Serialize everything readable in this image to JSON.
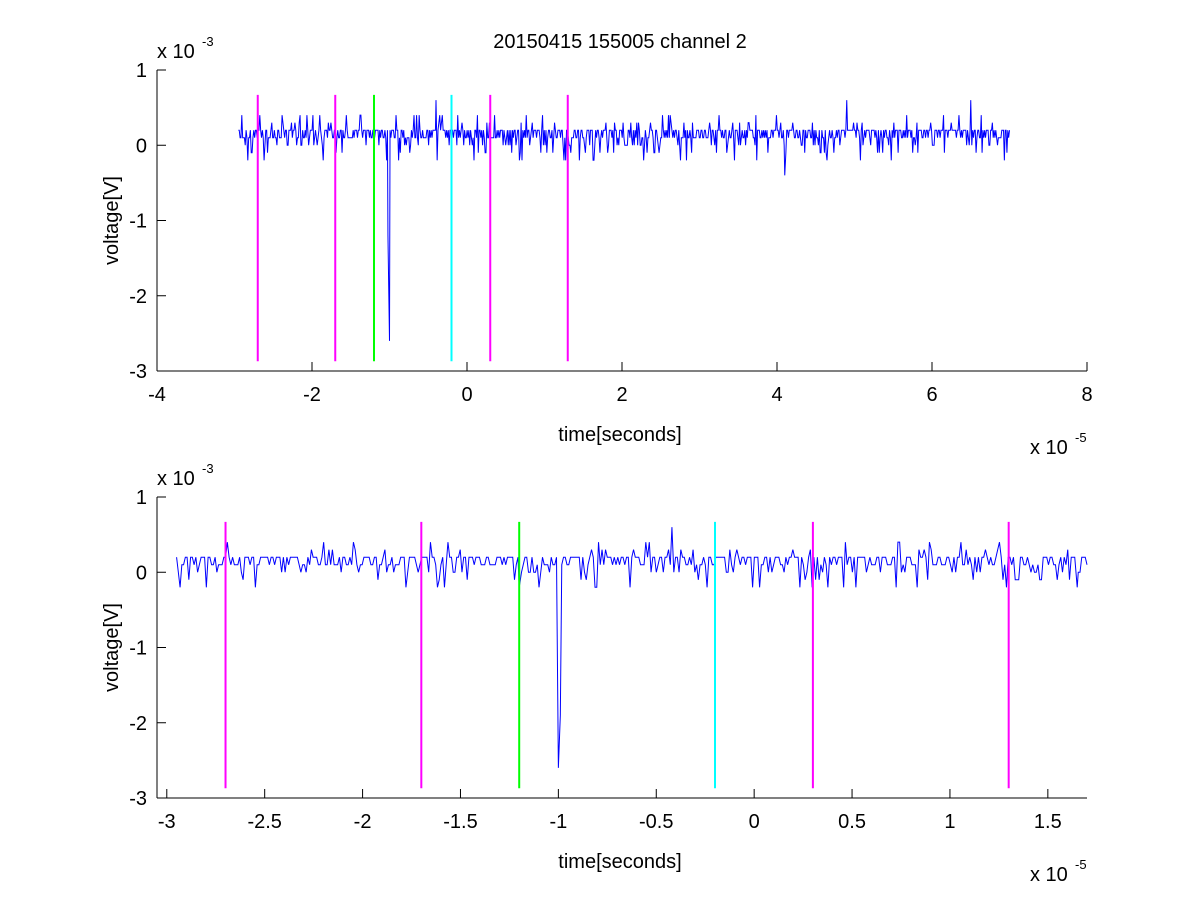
{
  "figure": {
    "title": "20150415 155005 channel 2",
    "background": "#ffffff"
  },
  "chart_data": [
    {
      "type": "line",
      "title": "20150415 155005 channel 2",
      "xlabel": "time[seconds]",
      "ylabel": "voltage[V]",
      "xlim": [
        -4e-05,
        8e-05
      ],
      "ylim": [
        -0.003,
        0.001
      ],
      "x_exponent_label": "x 10",
      "x_exponent": "-5",
      "y_exponent_label": "x 10",
      "y_exponent": "-3",
      "x_ticks": [
        -4e-05,
        -2e-05,
        0,
        2e-05,
        4e-05,
        6e-05,
        8e-05
      ],
      "x_tick_labels": [
        "-4",
        "-2",
        "0",
        "2",
        "4",
        "6",
        "8"
      ],
      "y_ticks": [
        0.001,
        0,
        -0.001,
        -0.002,
        -0.003
      ],
      "y_tick_labels": [
        "1",
        "0",
        "-1",
        "-2",
        "-3"
      ],
      "grid": false,
      "series": [
        {
          "color": "#0000ff",
          "x_range": [
            -2.95e-05,
            7e-05
          ],
          "baseline": 0.00012,
          "noise_amplitude": 0.0002,
          "spikes": [
            {
              "x": -1e-05,
              "y": -0.0026
            },
            {
              "x": -1.02e-05,
              "y": -0.0012
            },
            {
              "x": -4e-06,
              "y": 0.0006
            },
            {
              "x": 4.1e-05,
              "y": -0.0004
            },
            {
              "x": 4.9e-05,
              "y": 0.0006
            },
            {
              "x": 6.5e-05,
              "y": 0.0006
            }
          ]
        }
      ],
      "vertical_markers": [
        {
          "x": -2.7e-05,
          "color": "#ff00ff"
        },
        {
          "x": -1.7e-05,
          "color": "#ff00ff"
        },
        {
          "x": -1.2e-05,
          "color": "#00ff00"
        },
        {
          "x": -2e-06,
          "color": "#00ffff"
        },
        {
          "x": 3e-06,
          "color": "#ff00ff"
        },
        {
          "x": 1.3e-05,
          "color": "#ff00ff"
        }
      ],
      "marker_y_range": [
        -0.00287,
        0.00067
      ]
    },
    {
      "type": "line",
      "title": "",
      "xlabel": "time[seconds]",
      "ylabel": "voltage[V]",
      "xlim": [
        -3.05e-05,
        1.7e-05
      ],
      "ylim": [
        -0.003,
        0.001
      ],
      "x_exponent_label": "x 10",
      "x_exponent": "-5",
      "y_exponent_label": "x 10",
      "y_exponent": "-3",
      "x_ticks": [
        -3e-05,
        -2.5e-05,
        -2e-05,
        -1.5e-05,
        -1e-05,
        -5e-06,
        0,
        5e-06,
        1e-05,
        1.5e-05
      ],
      "x_tick_labels": [
        "-3",
        "-2.5",
        "-2",
        "-1.5",
        "-1",
        "-0.5",
        "0",
        "0.5",
        "1",
        "1.5"
      ],
      "y_ticks": [
        0.001,
        0,
        -0.001,
        -0.002,
        -0.003
      ],
      "y_tick_labels": [
        "1",
        "0",
        "-1",
        "-2",
        "-3"
      ],
      "grid": false,
      "series": [
        {
          "color": "#0000ff",
          "x_range": [
            -2.95e-05,
            1.7e-05
          ],
          "baseline": 0.00012,
          "noise_amplitude": 0.0002,
          "spikes": [
            {
              "x": -1e-05,
              "y": -0.0026
            },
            {
              "x": -9.9e-06,
              "y": -0.0019
            },
            {
              "x": -4.2e-06,
              "y": 0.0006
            },
            {
              "x": -1.2e-05,
              "y": -0.0002
            },
            {
              "x": 1.65e-05,
              "y": -0.0002
            }
          ]
        }
      ],
      "vertical_markers": [
        {
          "x": -2.7e-05,
          "color": "#ff00ff"
        },
        {
          "x": -1.7e-05,
          "color": "#ff00ff"
        },
        {
          "x": -1.2e-05,
          "color": "#00ff00"
        },
        {
          "x": -2e-06,
          "color": "#00ffff"
        },
        {
          "x": 3e-06,
          "color": "#ff00ff"
        },
        {
          "x": 1.3e-05,
          "color": "#ff00ff"
        }
      ],
      "marker_y_range": [
        -0.00287,
        0.00067
      ]
    }
  ]
}
